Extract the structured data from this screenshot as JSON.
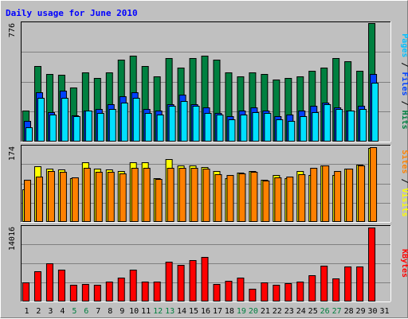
{
  "chart_data": {
    "type": "bar",
    "title": "Daily usage for June 2010",
    "categories": [
      "1",
      "2",
      "3",
      "4",
      "5",
      "6",
      "7",
      "8",
      "9",
      "10",
      "11",
      "12",
      "13",
      "14",
      "15",
      "16",
      "17",
      "18",
      "19",
      "20",
      "21",
      "22",
      "23",
      "24",
      "25",
      "26",
      "27",
      "28",
      "29",
      "30",
      "31"
    ],
    "weekend_days": [
      5,
      6,
      12,
      13,
      19,
      20,
      26,
      27
    ],
    "panels": [
      {
        "id": "top",
        "max_label": "776",
        "ylim": [
          0,
          776
        ],
        "right_labels": [
          {
            "text": "Pages",
            "color": "#00c0ff"
          },
          {
            "text": " / ",
            "color": "#000000"
          },
          {
            "text": "Files",
            "color": "#0040ff"
          },
          {
            "text": " / ",
            "color": "#000000"
          },
          {
            "text": "Hits",
            "color": "#008040"
          }
        ],
        "series": [
          {
            "name": "Hits",
            "color": "#008040",
            "offset": 0,
            "values": [
              205,
              495,
              445,
              440,
              355,
              455,
              415,
              455,
              535,
              565,
              495,
              425,
              545,
              485,
              545,
              565,
              535,
              455,
              425,
              455,
              445,
              405,
              415,
              425,
              465,
              485,
              545,
              525,
              465,
              776,
              null
            ]
          },
          {
            "name": "Files",
            "color": "#0040ff",
            "offset": 1,
            "values": [
              135,
              325,
              195,
              335,
              170,
              205,
              215,
              245,
              295,
              325,
              215,
              205,
              245,
              305,
              245,
              225,
              185,
              165,
              205,
              225,
              205,
              165,
              175,
              205,
              235,
              255,
              225,
              205,
              235,
              445,
              null
            ]
          },
          {
            "name": "Pages",
            "color": "#00e0ff",
            "offset": 2,
            "values": [
              95,
              285,
              175,
              285,
              165,
              205,
              185,
              215,
              255,
              285,
              185,
              175,
              235,
              265,
              235,
              185,
              175,
              145,
              175,
              195,
              185,
              145,
              135,
              165,
              195,
              245,
              215,
              205,
              215,
              385,
              null
            ]
          }
        ]
      },
      {
        "id": "middle",
        "max_label": "174",
        "ylim": [
          0,
          174
        ],
        "right_labels": [
          {
            "text": "Sites",
            "color": "#ff8000"
          },
          {
            "text": " / ",
            "color": "#000000"
          },
          {
            "text": "Visits",
            "color": "#ffff00"
          }
        ],
        "series": [
          {
            "name": "Visits",
            "color": "#ffff00",
            "offset": 0,
            "values": [
              75,
              128,
              122,
              120,
              100,
              138,
              122,
              120,
              118,
              138,
              138,
              100,
              145,
              130,
              130,
              127,
              118,
              100,
              113,
              118,
              97,
              108,
              100,
              117,
              108,
              130,
              108,
              122,
              132,
              170,
              null
            ]
          },
          {
            "name": "Sites",
            "color": "#ff8000",
            "offset": 1,
            "values": [
              97,
              105,
              118,
              115,
              102,
              125,
              115,
              115,
              112,
              125,
              125,
              98,
              125,
              125,
              125,
              122,
              110,
              108,
              112,
              115,
              95,
              102,
              105,
              110,
              125,
              130,
              118,
              122,
              130,
              172,
              null
            ]
          }
        ]
      },
      {
        "id": "bottom",
        "max_label": "14016",
        "ylim": [
          0,
          14016
        ],
        "right_labels": [
          {
            "text": "KBytes",
            "color": "#ff0000"
          }
        ],
        "series": [
          {
            "name": "KBytes",
            "color": "#ff0000",
            "offset": 0,
            "values": [
              3600,
              5700,
              7200,
              5900,
              3200,
              3300,
              3200,
              3800,
              4500,
              5900,
              3700,
              3700,
              7400,
              6800,
              7700,
              8300,
              3300,
              3900,
              4400,
              2400,
              3600,
              3100,
              3500,
              3700,
              4900,
              6700,
              4300,
              6600,
              6600,
              13900,
              null
            ]
          }
        ]
      }
    ]
  }
}
